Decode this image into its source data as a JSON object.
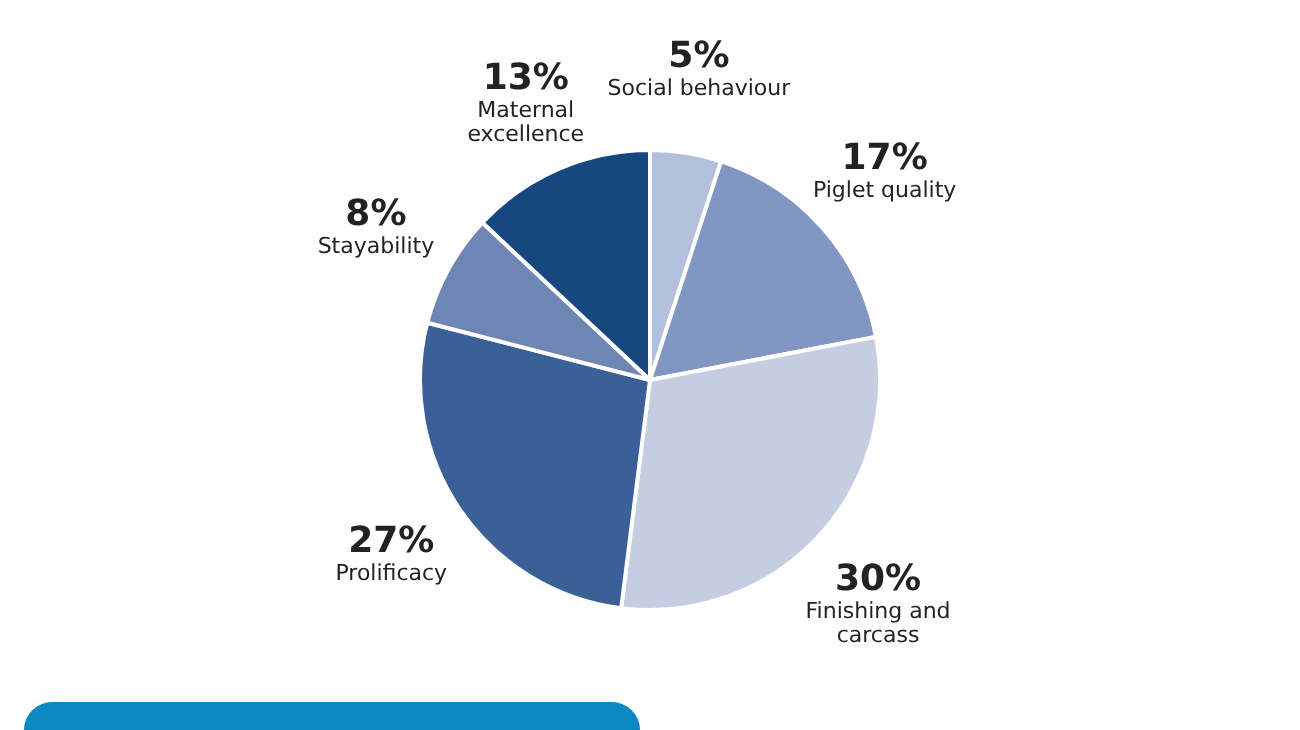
{
  "chart_data": {
    "type": "pie",
    "categories": [
      "Social behaviour",
      "Piglet quality",
      "Finishing and carcass",
      "Prolificacy",
      "Stayability",
      "Maternal excellence"
    ],
    "values": [
      5,
      17,
      30,
      27,
      8,
      13
    ],
    "value_labels": [
      "5%",
      "17%",
      "30%",
      "27%",
      "8%",
      "13%"
    ],
    "colors": [
      "#b3c0dc",
      "#8196c2",
      "#c5cde3",
      "#3b5f97",
      "#6d86b4",
      "#16487f"
    ],
    "legend": false
  }
}
